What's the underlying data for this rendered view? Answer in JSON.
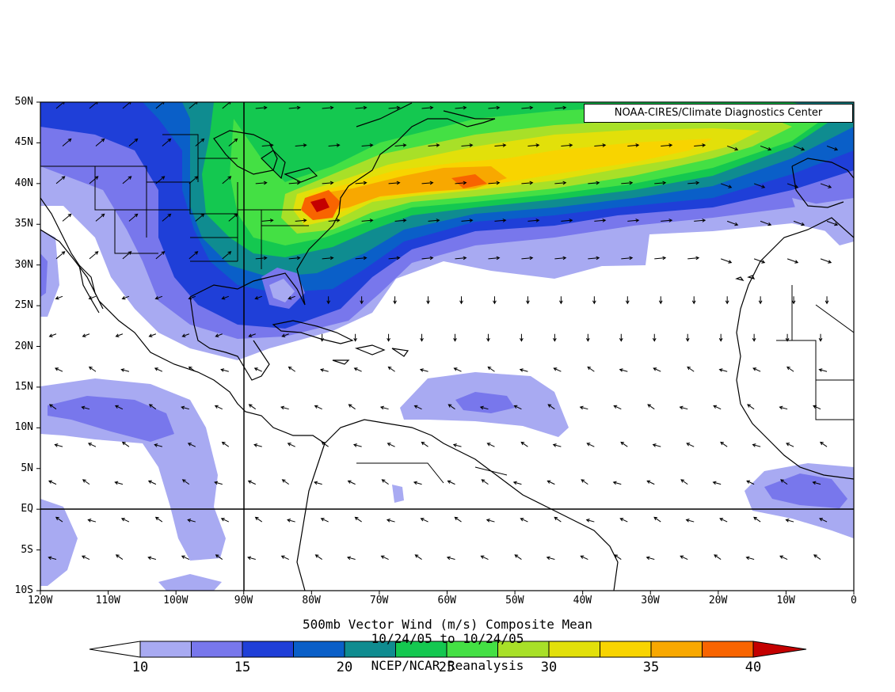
{
  "credit": "NOAA-CIRES/Climate Diagnostics Center",
  "title": "500mb Vector Wind (m/s) Composite Mean",
  "subtitle": "10/24/05  to 10/24/05",
  "source": "NCEP/NCAR Reanalysis",
  "y_tick_labels": [
    "50N",
    "45N",
    "40N",
    "35N",
    "30N",
    "25N",
    "20N",
    "15N",
    "10N",
    "5N",
    "EQ",
    "5S",
    "10S"
  ],
  "x_tick_labels": [
    "120W",
    "110W",
    "100W",
    "90W",
    "80W",
    "70W",
    "60W",
    "50W",
    "40W",
    "30W",
    "20W",
    "10W",
    "0"
  ],
  "colorbar_labels": [
    "10",
    "15",
    "20",
    "25",
    "30",
    "35",
    "40"
  ],
  "colorbar_colors": [
    "#a8aaf2",
    "#7877ec",
    "#1f3fd8",
    "#0a5fc8",
    "#0f8c90",
    "#14c850",
    "#44e044",
    "#a8e028",
    "#e2e00a",
    "#f8d400",
    "#f8a800",
    "#f86400",
    "#c40000"
  ],
  "chart_data": {
    "type": "heatmap",
    "title": "500mb Vector Wind (m/s) Composite Mean",
    "subtitle": "10/24/05  to 10/24/05",
    "source": "NCEP/NCAR Reanalysis",
    "x_range": [
      "120W",
      "0"
    ],
    "y_range": [
      "10S",
      "50N"
    ],
    "color_levels_m_s": [
      10,
      12.5,
      15,
      17.5,
      20,
      22.5,
      25,
      27.5,
      30,
      32.5,
      35,
      37.5,
      40
    ],
    "max_wind_region": "mid-Atlantic US coast near 37N 77W"
  }
}
